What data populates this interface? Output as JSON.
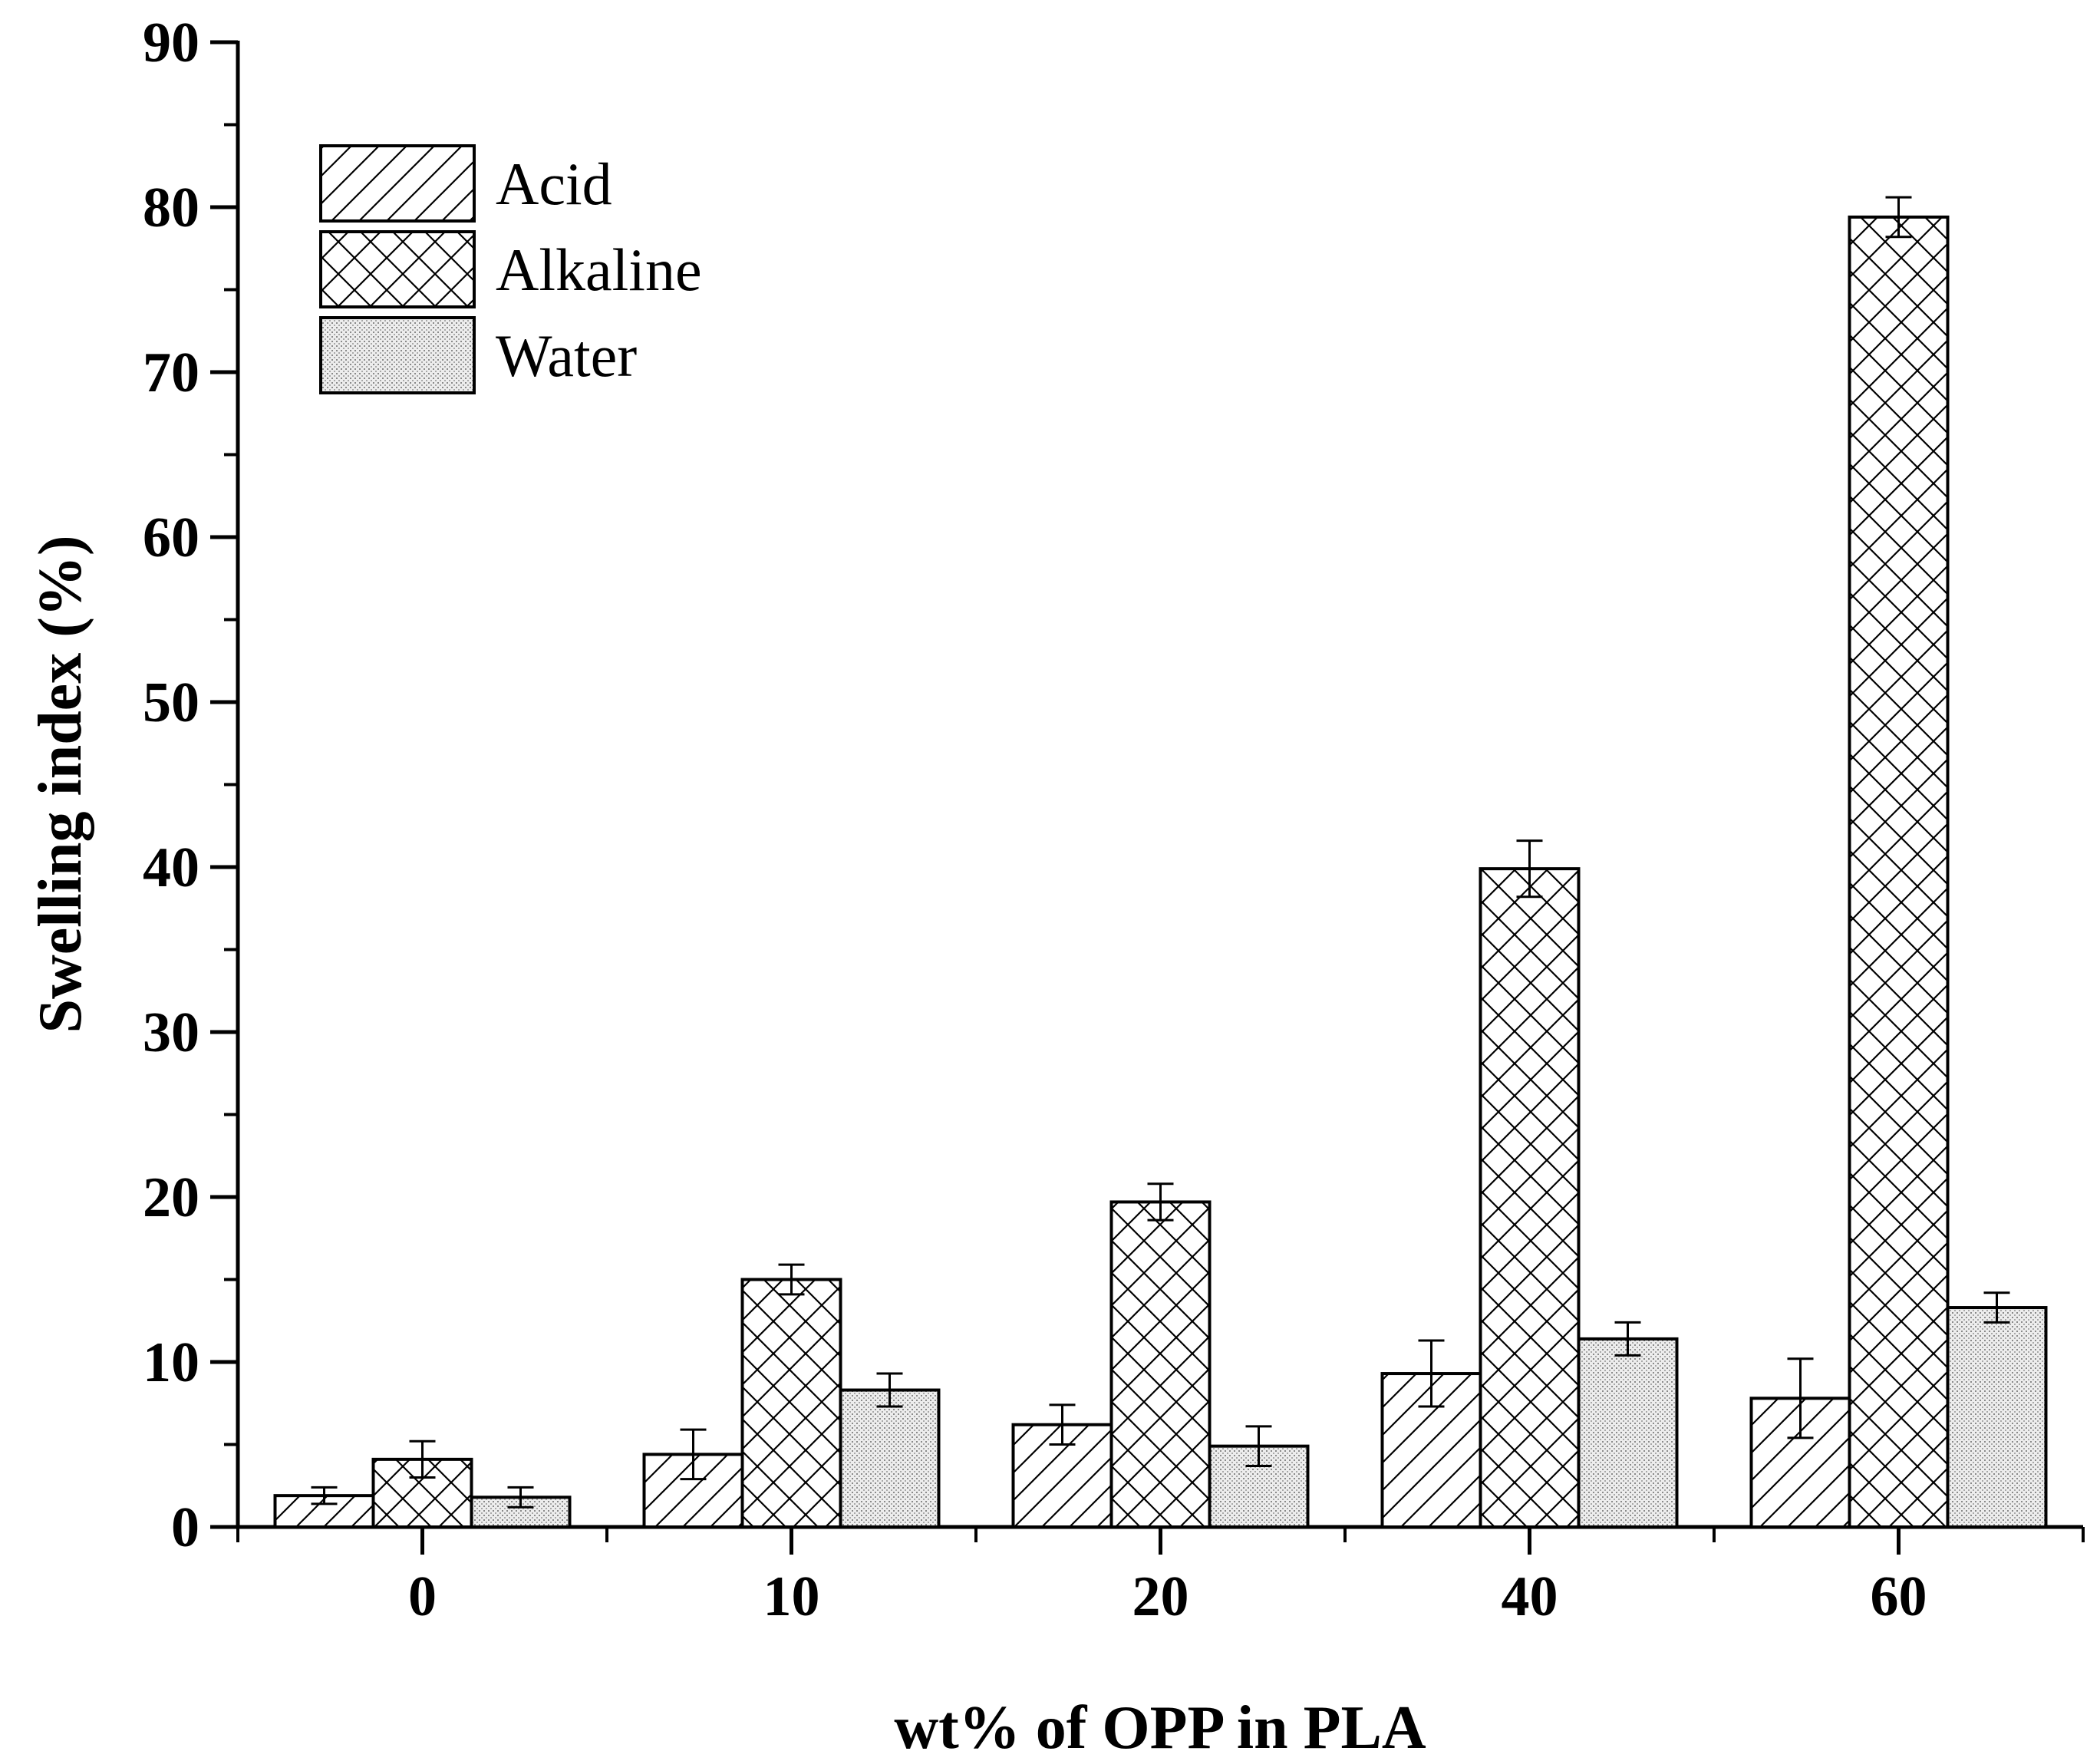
{
  "chart_data": {
    "type": "bar",
    "xlabel": "wt% of OPP in PLA",
    "ylabel": "Swelling index (%)",
    "ylim": [
      0,
      90
    ],
    "y_ticks": [
      "0",
      "10",
      "20",
      "30",
      "40",
      "50",
      "60",
      "70",
      "80",
      "90"
    ],
    "categories": [
      "0",
      "10",
      "20",
      "40",
      "60"
    ],
    "legend_position": "top-left",
    "series": [
      {
        "name": "Acid",
        "pattern": "diagonal-hatch",
        "values": [
          1.9,
          4.4,
          6.2,
          9.3,
          7.8
        ],
        "errors": [
          0.5,
          1.5,
          1.2,
          2.0,
          2.4
        ]
      },
      {
        "name": "Alkaline",
        "pattern": "cross-hatch",
        "values": [
          4.1,
          15.0,
          19.7,
          39.9,
          79.4
        ],
        "errors": [
          1.1,
          0.9,
          1.1,
          1.7,
          1.2
        ]
      },
      {
        "name": "Water",
        "pattern": "dotted",
        "values": [
          1.8,
          8.3,
          4.9,
          11.4,
          13.3
        ],
        "errors": [
          0.6,
          1.0,
          1.2,
          1.0,
          0.9
        ]
      }
    ]
  }
}
